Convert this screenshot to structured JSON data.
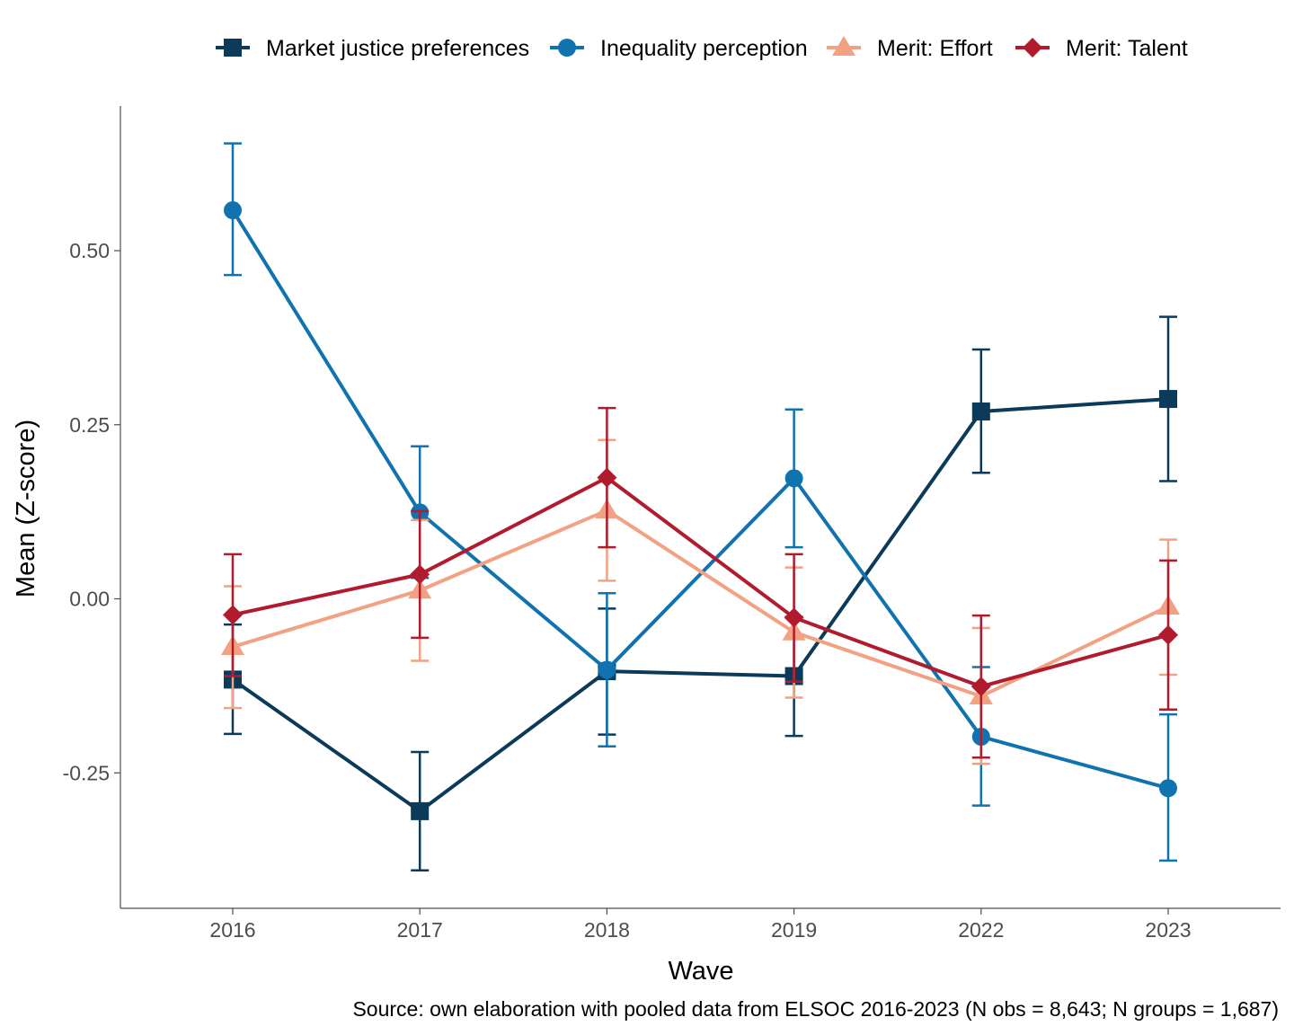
{
  "chart_data": {
    "type": "line",
    "x": [
      "2016",
      "2017",
      "2018",
      "2019",
      "2022",
      "2023"
    ],
    "xlabel": "Wave",
    "ylabel": "Mean (Z-score)",
    "ylim": [
      -0.44,
      0.7
    ],
    "yticks": [
      -0.25,
      0.0,
      0.25,
      0.5
    ],
    "ytick_labels": [
      "-0.25",
      "0.00",
      "0.25",
      "0.50"
    ],
    "grid": false,
    "legend_position": "top",
    "caption": "Source: own elaboration with pooled data from ELSOC 2016-2023 (N obs = 8,643; N groups = 1,687)",
    "series": [
      {
        "name": "Market justice preferences",
        "color": "#0b3a5a",
        "marker": "square",
        "values": [
          -0.116,
          -0.305,
          -0.104,
          -0.111,
          0.269,
          0.287
        ],
        "lower": [
          -0.194,
          -0.39,
          -0.195,
          -0.197,
          0.181,
          0.169
        ],
        "upper": [
          -0.037,
          -0.22,
          -0.014,
          -0.026,
          0.358,
          0.405
        ]
      },
      {
        "name": "Inequality perception",
        "color": "#1172b0",
        "marker": "circle",
        "values": [
          0.558,
          0.124,
          -0.102,
          0.173,
          -0.198,
          -0.272
        ],
        "lower": [
          0.465,
          0.03,
          -0.212,
          0.074,
          -0.297,
          -0.376
        ],
        "upper": [
          0.654,
          0.219,
          0.008,
          0.272,
          -0.098,
          -0.166
        ]
      },
      {
        "name": "Merit: Effort",
        "color": "#f2a282",
        "marker": "triangle",
        "values": [
          -0.069,
          0.012,
          0.127,
          -0.048,
          -0.14,
          -0.011
        ],
        "lower": [
          -0.157,
          -0.089,
          0.026,
          -0.142,
          -0.237,
          -0.109
        ],
        "upper": [
          0.018,
          0.113,
          0.228,
          0.045,
          -0.042,
          0.085
        ]
      },
      {
        "name": "Merit: Talent",
        "color": "#b01c2e",
        "marker": "diamond",
        "values": [
          -0.023,
          0.035,
          0.174,
          -0.027,
          -0.126,
          -0.052
        ],
        "lower": [
          -0.111,
          -0.056,
          0.074,
          -0.119,
          -0.228,
          -0.159
        ],
        "upper": [
          0.064,
          0.126,
          0.274,
          0.064,
          -0.024,
          0.055
        ]
      }
    ]
  }
}
